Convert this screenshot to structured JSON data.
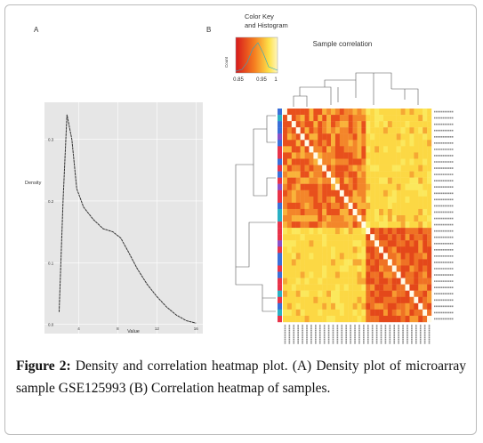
{
  "panel_a_label": "A",
  "chart_data": {
    "type": "line",
    "ylabel": "Density",
    "xlabel": "Value",
    "x": [
      2,
      2.4,
      2.8,
      3.3,
      3.8,
      4.5,
      5.5,
      6.5,
      7.5,
      8.3,
      9,
      10,
      11,
      12,
      13,
      14,
      15,
      16
    ],
    "values": [
      0.02,
      0.2,
      0.34,
      0.3,
      0.22,
      0.19,
      0.17,
      0.155,
      0.15,
      0.14,
      0.12,
      0.09,
      0.065,
      0.045,
      0.028,
      0.015,
      0.006,
      0.002
    ],
    "color": "#333333",
    "xlim": [
      0.5,
      16.7
    ],
    "ylim": [
      -0.015,
      0.36
    ],
    "xticks": [
      4,
      8,
      12,
      16
    ],
    "yticks": [
      {
        "value": 0,
        "label": "0.0"
      },
      0.1,
      0.2,
      0.3
    ],
    "grid": true
  },
  "panel_b": {
    "label": "B",
    "title": "Sample correlation",
    "color_key": {
      "title": [
        "Color Key",
        "and Histogram"
      ],
      "count_label": "Count",
      "tick_labels": [
        "0.85",
        "0.95",
        "1"
      ]
    }
  },
  "caption": {
    "label": "Figure 2:",
    "text": "Density and correlation heatmap plot. (A) Density plot of microarray sample GSE125993 (B) Correlation heatmap of samples."
  }
}
